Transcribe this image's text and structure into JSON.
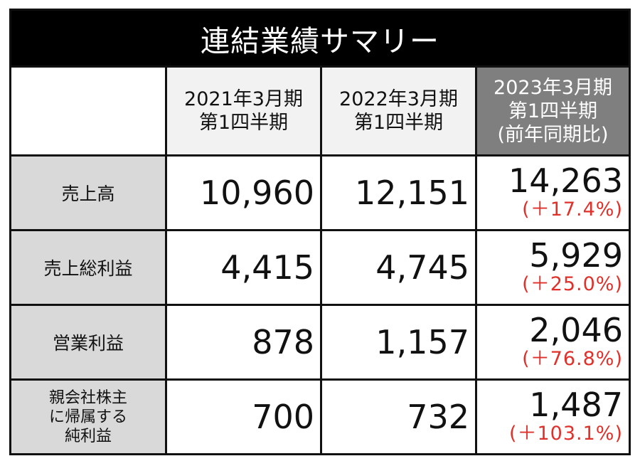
{
  "title": "連結業績サマリー",
  "columns": [
    {
      "line1": "2021年3月期",
      "line2": "第1四半期"
    },
    {
      "line1": "2022年3月期",
      "line2": "第1四半期"
    },
    {
      "line1": "2023年3月期",
      "line2": "第1四半期",
      "line3": "(前年同期比)"
    }
  ],
  "rows": [
    {
      "label": "売上高",
      "v2021": "10,960",
      "v2022": "12,151",
      "v2023": "14,263",
      "change": "(＋17.4%)"
    },
    {
      "label": "売上総利益",
      "v2021": "4,415",
      "v2022": "4,745",
      "v2023": "5,929",
      "change": "(＋25.0%)"
    },
    {
      "label": "営業利益",
      "v2021": "878",
      "v2022": "1,157",
      "v2023": "2,046",
      "change": "(＋76.8%)"
    },
    {
      "label_lines": [
        "親会社株主",
        "に帰属する",
        "純利益"
      ],
      "v2021": "700",
      "v2022": "732",
      "v2023": "1,487",
      "change": "(＋103.1%)"
    }
  ],
  "colors": {
    "title_bg": "#000000",
    "current_header_bg": "#7f7f7f",
    "row_label_bg": "#d9d9d9",
    "change_text": "#e0302a"
  }
}
